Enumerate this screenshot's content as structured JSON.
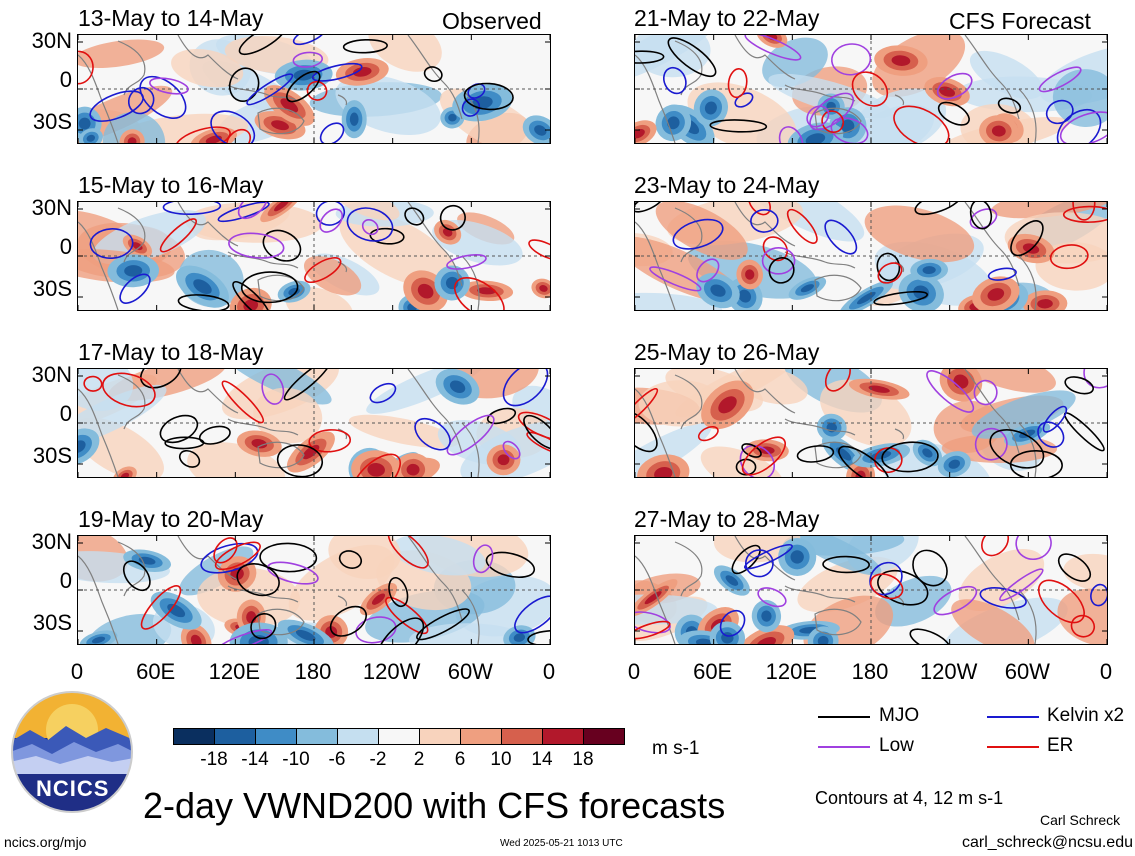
{
  "header": {
    "left_label": "Observed",
    "right_label": "CFS Forecast"
  },
  "panels": [
    {
      "title": "13-May to 14-May"
    },
    {
      "title": "15-May to 16-May"
    },
    {
      "title": "17-May to 18-May"
    },
    {
      "title": "19-May to 20-May"
    },
    {
      "title": "21-May to 22-May"
    },
    {
      "title": "23-May to 24-May"
    },
    {
      "title": "25-May to 26-May"
    },
    {
      "title": "27-May to 28-May"
    }
  ],
  "axes": {
    "y_ticks": [
      "30N",
      "0",
      "30S"
    ],
    "x_ticks": [
      "0",
      "60E",
      "120E",
      "180",
      "120W",
      "60W",
      "0"
    ]
  },
  "colorbar": {
    "ticks": [
      "-18",
      "-14",
      "-10",
      "-6",
      "-2",
      "2",
      "6",
      "10",
      "14",
      "18"
    ],
    "colors": [
      "#0a2f5f",
      "#1d5f9f",
      "#3f8cc6",
      "#84bcdc",
      "#c5dff0",
      "#f7f7f7",
      "#f8d3bd",
      "#ef9f80",
      "#d6604d",
      "#b2182b",
      "#67001f"
    ],
    "unit": "m s-1"
  },
  "legend": {
    "items": [
      {
        "label": "MJO",
        "color": "#000000"
      },
      {
        "label": "Kelvin x2",
        "color": "#1a1ad0"
      },
      {
        "label": "Low",
        "color": "#a040e0"
      },
      {
        "label": "ER",
        "color": "#e01010"
      }
    ],
    "contours_note": "Contours at 4, 12 m s-1"
  },
  "footer": {
    "title": "2-day VWND200 with CFS forecasts",
    "logo_text": "NCICS",
    "url": "ncics.org/mjo",
    "timestamp": "Wed 2025-05-21 1013 UTC",
    "author": "Carl Schreck",
    "email": "carl_schreck@ncsu.edu"
  },
  "chart_data": {
    "type": "heatmap",
    "title": "2-day VWND200 with CFS forecasts",
    "variable": "200-hPa meridional wind anomaly",
    "unit": "m s-1",
    "x_ticks": [
      "0",
      "60E",
      "120E",
      "180",
      "120W",
      "60W",
      "0"
    ],
    "y_ticks": [
      "30N",
      "0",
      "30S"
    ],
    "color_levels": [
      -18,
      -14,
      -10,
      -6,
      -2,
      2,
      6,
      10,
      14,
      18
    ],
    "contour_levels": [
      4,
      12
    ],
    "panels": [
      {
        "period": "13-May to 14-May",
        "source": "Observed"
      },
      {
        "period": "15-May to 16-May",
        "source": "Observed"
      },
      {
        "period": "17-May to 18-May",
        "source": "Observed"
      },
      {
        "period": "19-May to 20-May",
        "source": "Observed"
      },
      {
        "period": "21-May to 22-May",
        "source": "CFS Forecast"
      },
      {
        "period": "23-May to 24-May",
        "source": "CFS Forecast"
      },
      {
        "period": "25-May to 26-May",
        "source": "CFS Forecast"
      },
      {
        "period": "27-May to 28-May",
        "source": "CFS Forecast"
      }
    ]
  }
}
